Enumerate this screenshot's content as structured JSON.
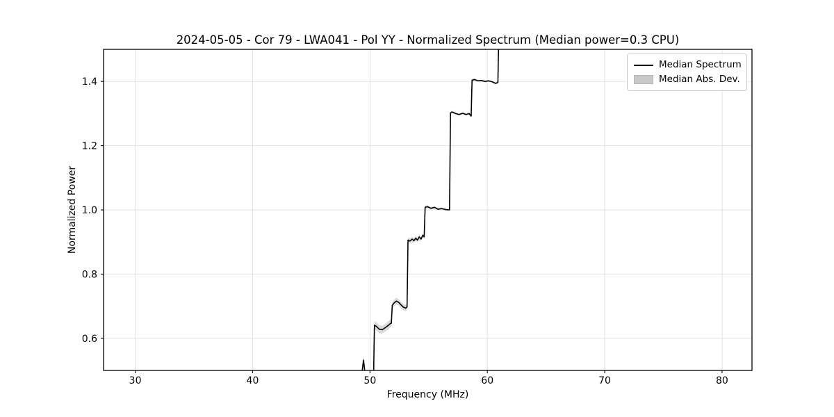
{
  "chart_data": {
    "type": "line",
    "title": "2024-05-05 - Cor 79 - LWA041 - Pol YY - Normalized Spectrum (Median power=0.3 CPU)",
    "xlabel": "Frequency (MHz)",
    "ylabel": "Normalized Power",
    "xlim": [
      27.3,
      82.55
    ],
    "ylim": [
      0.5,
      1.5
    ],
    "x_ticks": [
      30,
      40,
      50,
      60,
      70,
      80
    ],
    "x_tick_labels": [
      "30",
      "40",
      "50",
      "60",
      "70",
      "80"
    ],
    "y_ticks": [
      0.6,
      0.8,
      1.0,
      1.2,
      1.4
    ],
    "y_tick_labels": [
      "0.6",
      "0.8",
      "1.0",
      "1.2",
      "1.4"
    ],
    "grid": true,
    "legend": {
      "position": "upper right",
      "entries": [
        {
          "label": "Median Spectrum",
          "type": "line",
          "color": "#000000"
        },
        {
          "label": "Median Abs. Dev.",
          "type": "patch",
          "color": "#c9c9c9"
        }
      ]
    },
    "series": [
      {
        "name": "Median Spectrum",
        "description": "Step-like median spectrum rising from below 0.5 near 50 MHz to above 1.5 at 61 MHz; points are [frequency_MHz, normalized_power, median_abs_dev]",
        "points": [
          [
            48.8,
            0.47,
            0.02
          ],
          [
            49.25,
            0.472,
            0.018
          ],
          [
            49.45,
            0.532,
            0.016
          ],
          [
            49.62,
            0.478,
            0.014
          ],
          [
            49.75,
            0.464,
            0.013
          ],
          [
            50.3,
            0.464,
            0.012
          ],
          [
            50.38,
            0.641,
            0.013
          ],
          [
            50.55,
            0.637,
            0.012
          ],
          [
            50.8,
            0.628,
            0.013
          ],
          [
            51.05,
            0.627,
            0.012
          ],
          [
            51.3,
            0.633,
            0.012
          ],
          [
            51.55,
            0.64,
            0.013
          ],
          [
            51.74,
            0.646,
            0.012
          ],
          [
            51.82,
            0.647,
            0.012
          ],
          [
            51.9,
            0.703,
            0.01
          ],
          [
            52.05,
            0.71,
            0.01
          ],
          [
            52.25,
            0.716,
            0.011
          ],
          [
            52.45,
            0.712,
            0.01
          ],
          [
            52.65,
            0.704,
            0.01
          ],
          [
            52.85,
            0.697,
            0.01
          ],
          [
            53.05,
            0.694,
            0.01
          ],
          [
            53.16,
            0.698,
            0.01
          ],
          [
            53.24,
            0.906,
            0.008
          ],
          [
            53.4,
            0.903,
            0.008
          ],
          [
            53.6,
            0.909,
            0.008
          ],
          [
            53.75,
            0.904,
            0.007
          ],
          [
            53.9,
            0.912,
            0.008
          ],
          [
            54.05,
            0.906,
            0.007
          ],
          [
            54.2,
            0.916,
            0.008
          ],
          [
            54.35,
            0.909,
            0.007
          ],
          [
            54.5,
            0.921,
            0.007
          ],
          [
            54.62,
            0.916,
            0.007
          ],
          [
            54.7,
            1.008,
            0.005
          ],
          [
            54.9,
            1.01,
            0.005
          ],
          [
            55.2,
            1.005,
            0.004
          ],
          [
            55.5,
            1.008,
            0.004
          ],
          [
            55.8,
            1.002,
            0.004
          ],
          [
            56.1,
            1.004,
            0.004
          ],
          [
            56.45,
            1.001,
            0.003
          ],
          [
            56.78,
            1.0,
            0.003
          ],
          [
            56.86,
            1.302,
            0.004
          ],
          [
            57.0,
            1.305,
            0.004
          ],
          [
            57.3,
            1.3,
            0.003
          ],
          [
            57.6,
            1.297,
            0.003
          ],
          [
            57.9,
            1.301,
            0.003
          ],
          [
            58.2,
            1.297,
            0.003
          ],
          [
            58.45,
            1.3,
            0.003
          ],
          [
            58.62,
            1.292,
            0.003
          ],
          [
            58.7,
            1.404,
            0.004
          ],
          [
            58.9,
            1.406,
            0.004
          ],
          [
            59.2,
            1.402,
            0.003
          ],
          [
            59.5,
            1.403,
            0.003
          ],
          [
            59.8,
            1.4,
            0.003
          ],
          [
            60.1,
            1.402,
            0.003
          ],
          [
            60.4,
            1.399,
            0.003
          ],
          [
            60.7,
            1.394,
            0.003
          ],
          [
            60.9,
            1.397,
            0.003
          ],
          [
            60.98,
            1.56,
            0.004
          ]
        ]
      }
    ],
    "colors": {
      "line": "#000000",
      "band": "#bdbdbd",
      "grid": "#e2e2e2",
      "spine": "#000000",
      "tick": "#000000",
      "text": "#000000",
      "background": "#ffffff"
    }
  }
}
